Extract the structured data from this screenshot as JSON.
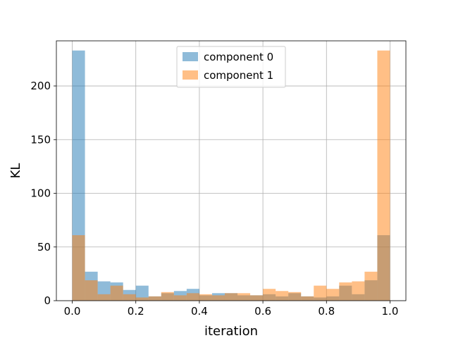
{
  "chart_data": {
    "type": "histogram",
    "xlabel": "iteration",
    "ylabel": "KL",
    "xlim": [
      -0.05,
      1.05
    ],
    "ylim": [
      0,
      242
    ],
    "xticks": [
      0.0,
      0.2,
      0.4,
      0.6,
      0.8,
      1.0
    ],
    "xtick_labels": [
      "0.0",
      "0.2",
      "0.4",
      "0.6",
      "0.8",
      "1.0"
    ],
    "yticks": [
      0,
      50,
      100,
      150,
      200
    ],
    "ytick_labels": [
      "0",
      "50",
      "100",
      "150",
      "200"
    ],
    "grid": true,
    "legend_position": "top-center",
    "bin_edges": [
      0.0,
      0.04,
      0.08,
      0.12,
      0.16,
      0.2,
      0.24,
      0.28,
      0.32,
      0.36,
      0.4,
      0.44,
      0.48,
      0.52,
      0.56,
      0.6,
      0.64,
      0.68,
      0.72,
      0.76,
      0.8,
      0.84,
      0.88,
      0.92,
      0.96,
      1.0
    ],
    "series": [
      {
        "name": "component 0",
        "color": "#1f77b4",
        "alpha": 0.5,
        "counts": [
          233,
          27,
          18,
          17,
          10,
          14,
          4,
          7,
          9,
          11,
          5,
          7,
          7,
          5,
          5,
          6,
          4,
          7,
          4,
          3,
          4,
          14,
          6,
          19,
          61
        ]
      },
      {
        "name": "component 1",
        "color": "#ff7f0e",
        "alpha": 0.5,
        "counts": [
          61,
          19,
          6,
          14,
          6,
          3,
          4,
          8,
          5,
          7,
          6,
          5,
          7,
          7,
          5,
          11,
          9,
          8,
          4,
          14,
          11,
          17,
          18,
          27,
          233
        ]
      }
    ]
  }
}
